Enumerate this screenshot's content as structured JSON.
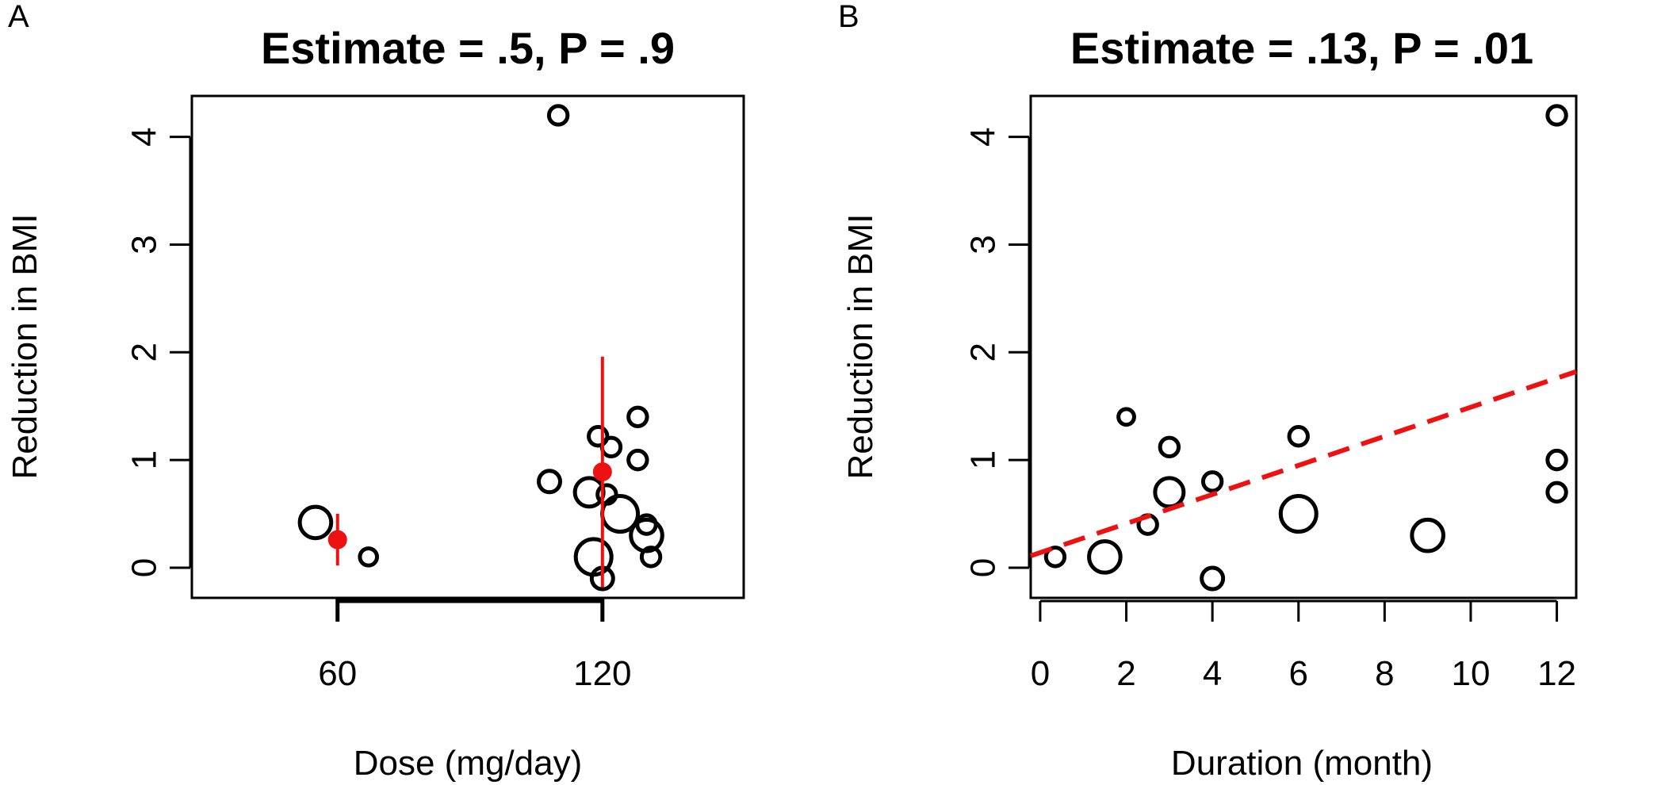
{
  "colors": {
    "points": "#000000",
    "highlight": "#ee1111",
    "frame": "#000000"
  },
  "chart_data": [
    {
      "type": "scatter",
      "panel_label": "A",
      "title": "Estimate = .5, P = .9",
      "xlabel": "Dose (mg/day)",
      "ylabel": "Reduction in BMI",
      "xlim": [
        27,
        152
      ],
      "ylim": [
        -0.28,
        4.38
      ],
      "x_ticks": [
        60,
        120
      ],
      "y_ticks": [
        0,
        1,
        2,
        3,
        4
      ],
      "grid": false,
      "points": [
        {
          "x": 55,
          "y": 0.42,
          "size": 2.2
        },
        {
          "x": 67,
          "y": 0.1,
          "size": 1.2
        },
        {
          "x": 110,
          "y": 4.2,
          "size": 1.3
        },
        {
          "x": 108,
          "y": 0.8,
          "size": 1.5
        },
        {
          "x": 119,
          "y": 1.22,
          "size": 1.3
        },
        {
          "x": 122,
          "y": 1.12,
          "size": 1.3
        },
        {
          "x": 117,
          "y": 0.7,
          "size": 2.0
        },
        {
          "x": 121,
          "y": 0.68,
          "size": 1.3
        },
        {
          "x": 124,
          "y": 0.5,
          "size": 2.5
        },
        {
          "x": 128,
          "y": 1.4,
          "size": 1.3
        },
        {
          "x": 128,
          "y": 1.0,
          "size": 1.3
        },
        {
          "x": 130,
          "y": 0.4,
          "size": 1.3
        },
        {
          "x": 130,
          "y": 0.3,
          "size": 2.2
        },
        {
          "x": 131,
          "y": 0.1,
          "size": 1.3
        },
        {
          "x": 118,
          "y": 0.1,
          "size": 2.5
        },
        {
          "x": 120,
          "y": -0.1,
          "size": 1.5
        }
      ],
      "group_estimates": [
        {
          "x": 60,
          "mean": 0.26,
          "lower": 0.02,
          "upper": 0.5
        },
        {
          "x": 120,
          "mean": 0.89,
          "lower": -0.18,
          "upper": 1.96
        }
      ],
      "x_range_bracket": [
        60,
        120
      ]
    },
    {
      "type": "scatter",
      "panel_label": "B",
      "title": "Estimate = .13, P = .01",
      "xlabel": "Duration (month)",
      "ylabel": "Reduction in BMI",
      "xlim": [
        -0.22,
        12.45
      ],
      "ylim": [
        -0.28,
        4.38
      ],
      "x_ticks": [
        0,
        2,
        4,
        6,
        8,
        10,
        12
      ],
      "y_ticks": [
        0,
        1,
        2,
        3,
        4
      ],
      "grid": false,
      "points": [
        {
          "x": 0.35,
          "y": 0.1,
          "size": 1.3
        },
        {
          "x": 1.5,
          "y": 0.1,
          "size": 2.2
        },
        {
          "x": 2,
          "y": 1.4,
          "size": 1.1
        },
        {
          "x": 2.5,
          "y": 0.4,
          "size": 1.3
        },
        {
          "x": 3,
          "y": 1.12,
          "size": 1.3
        },
        {
          "x": 3,
          "y": 0.7,
          "size": 2.0
        },
        {
          "x": 4,
          "y": 0.8,
          "size": 1.3
        },
        {
          "x": 4,
          "y": -0.1,
          "size": 1.5
        },
        {
          "x": 6,
          "y": 1.22,
          "size": 1.3
        },
        {
          "x": 6,
          "y": 0.5,
          "size": 2.5
        },
        {
          "x": 9,
          "y": 0.3,
          "size": 2.2
        },
        {
          "x": 12,
          "y": 4.2,
          "size": 1.3
        },
        {
          "x": 12,
          "y": 1.0,
          "size": 1.3
        },
        {
          "x": 12,
          "y": 0.7,
          "size": 1.3
        }
      ],
      "regression_line": {
        "intercept": 0.14,
        "slope": 0.135,
        "style": "dashed"
      }
    }
  ]
}
